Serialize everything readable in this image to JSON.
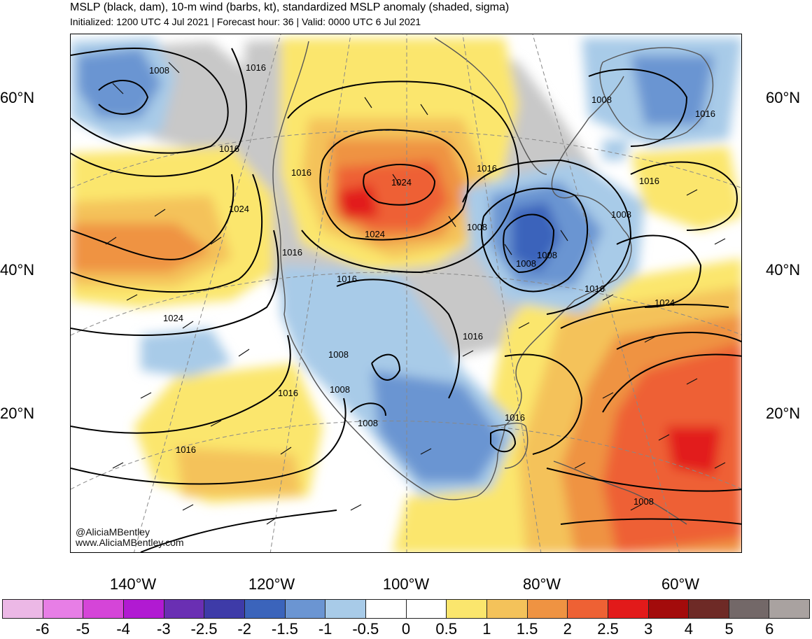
{
  "header": {
    "title": "MSLP (black, dam), 10-m wind (barbs, kt), standardized MSLP anomaly (shaded, sigma)",
    "subtitle": "Initialized: 1200 UTC 4 Jul 2021 | Forecast hour: 36 | Valid: 0000 UTC 6 Jul 2021"
  },
  "axes": {
    "lat_labels": [
      "60°N",
      "40°N",
      "20°N"
    ],
    "lon_labels": [
      "140°W",
      "120°W",
      "100°W",
      "80°W",
      "60°W"
    ]
  },
  "isobars": {
    "labels": [
      "1008",
      "1016",
      "1016",
      "1016",
      "1024",
      "1016",
      "1024",
      "1024",
      "1016",
      "1008",
      "1008",
      "1008",
      "1016",
      "1008",
      "1016",
      "1024",
      "1016",
      "1008",
      "1008",
      "1016",
      "1016",
      "1008",
      "1024",
      "1016",
      "1016",
      "1008",
      "1016",
      "1008"
    ]
  },
  "credits": {
    "handle": "@AliciaMBentley",
    "site": "www.AliciaMBentley.com"
  },
  "colorbar": {
    "labels": [
      "-6",
      "-5",
      "-4",
      "-3",
      "-2.5",
      "-2",
      "-1.5",
      "-1",
      "-0.5",
      "0",
      "0.5",
      "1",
      "1.5",
      "2",
      "2.5",
      "3",
      "4",
      "5",
      "6"
    ],
    "colors": [
      "#ecb8e6",
      "#e77ee6",
      "#d545d8",
      "#b11ad2",
      "#6a2fb3",
      "#3e3ba8",
      "#3b64bb",
      "#6b95d2",
      "#a8cbe8",
      "#ffffff",
      "#ffffff",
      "#fbe66d",
      "#f4c25a",
      "#ef9342",
      "#ee6134",
      "#e21a1a",
      "#a30b0b",
      "#6e2a26",
      "#736868",
      "#a9a2a0"
    ]
  },
  "map_colors": {
    "land_gray": "#c8c8c8",
    "water": "#ffffff"
  }
}
